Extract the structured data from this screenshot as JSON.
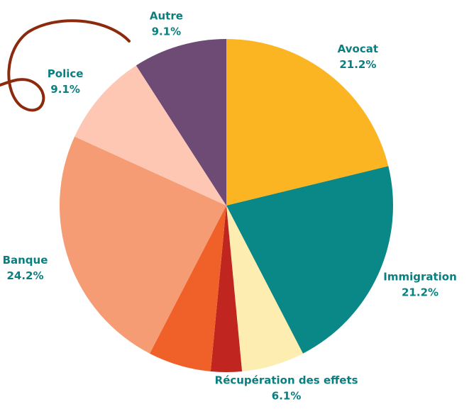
{
  "chart_data": {
    "type": "pie",
    "categories": [
      "Avocat",
      "Immigration",
      "Récupération des effets",
      null,
      null,
      "Banque",
      "Police",
      "Autre"
    ],
    "values": [
      21.2,
      21.2,
      6.1,
      3.0,
      6.1,
      24.2,
      9.1,
      9.1
    ],
    "value_labels": [
      "21.2%",
      "21.2%",
      "6.1%",
      null,
      null,
      "24.2%",
      "9.1%",
      "9.1%"
    ],
    "colors": [
      "#fbb522",
      "#0a8787",
      "#fdedb0",
      "#c0261f",
      "#ef6128",
      "#f59c74",
      "#fec7b4",
      "#6d4b74"
    ]
  }
}
